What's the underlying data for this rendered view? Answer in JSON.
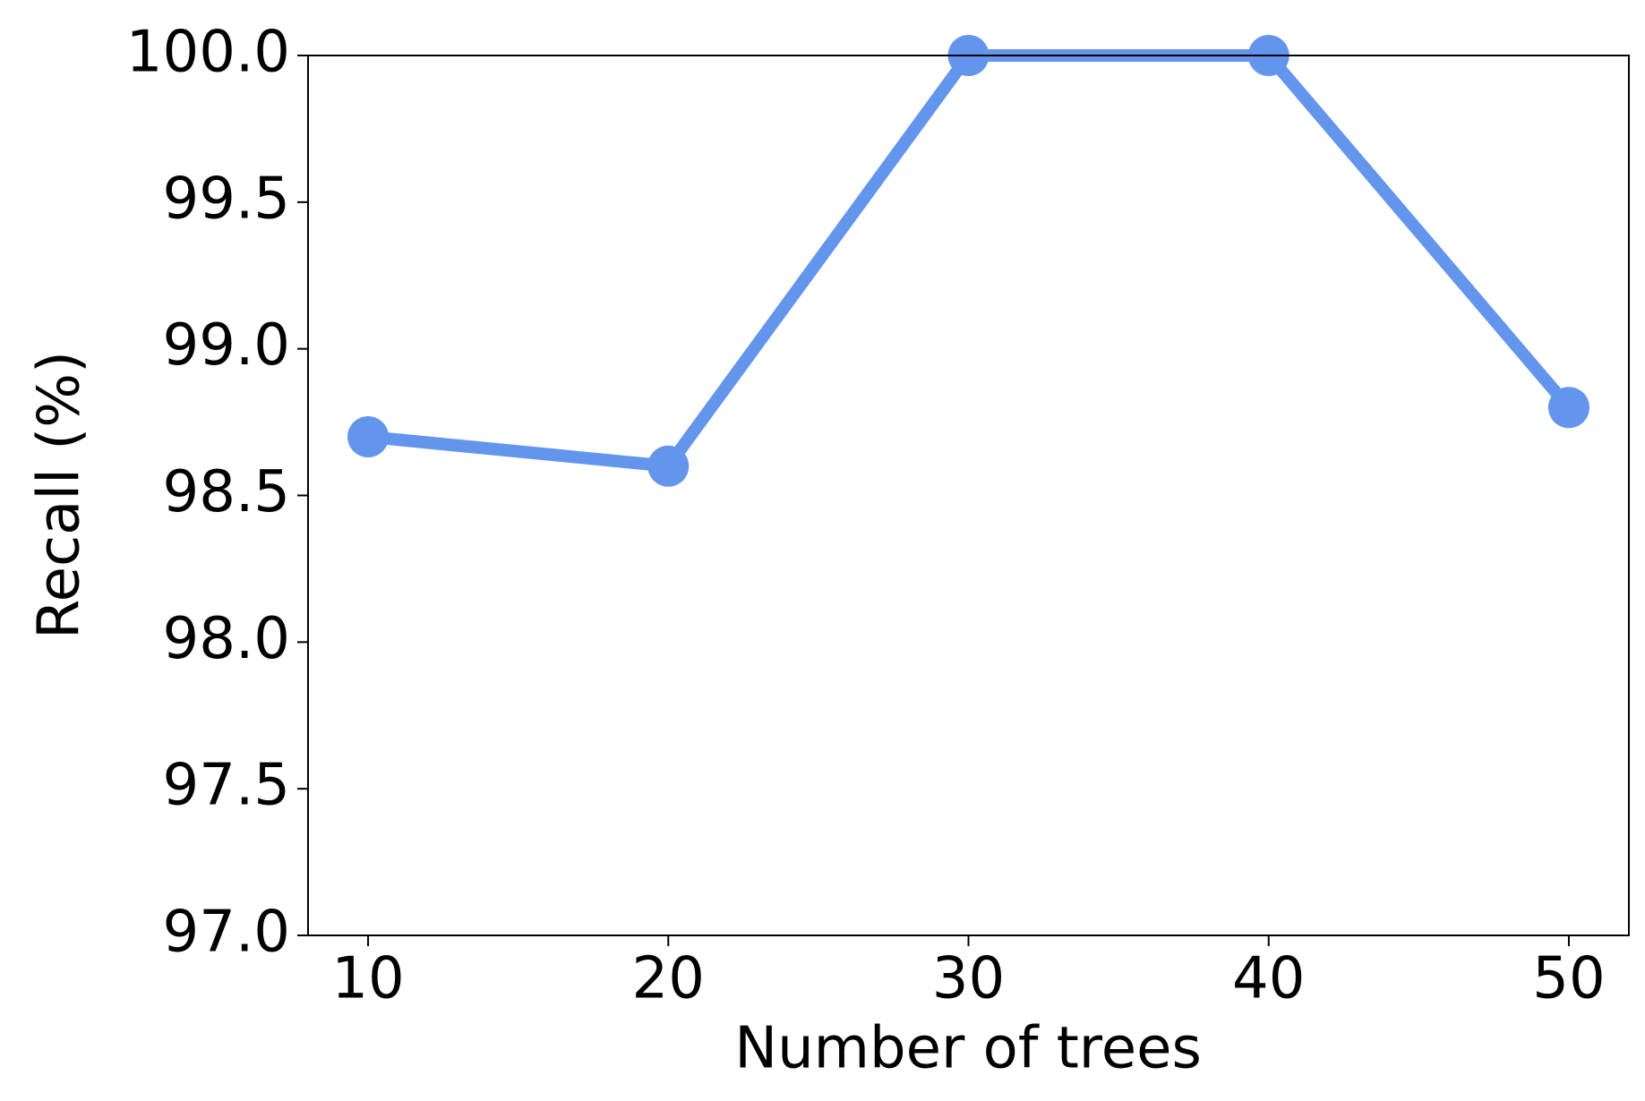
{
  "chart_data": {
    "type": "line",
    "x_label": "Number of trees",
    "y_label": "Recall (%)",
    "x": [
      10,
      20,
      30,
      40,
      50
    ],
    "series": [
      {
        "color": "#6495ed",
        "values": [
          98.7,
          98.6,
          100,
          100,
          98.8
        ]
      }
    ],
    "xlim": [
      8,
      52
    ],
    "ylim": [
      97,
      100
    ],
    "xticks": [
      10,
      20,
      30,
      40,
      50
    ],
    "yticks": [
      {
        "value": 97,
        "label": "97.0"
      },
      {
        "value": 97.5,
        "label": "97.5"
      },
      {
        "value": 98,
        "label": "98.0"
      },
      {
        "value": 98.5,
        "label": "98.5"
      },
      {
        "value": 99,
        "label": "99.0"
      },
      {
        "value": 99.5,
        "label": "99.5"
      },
      {
        "value": 100,
        "label": "100.0"
      }
    ],
    "grid": false
  }
}
